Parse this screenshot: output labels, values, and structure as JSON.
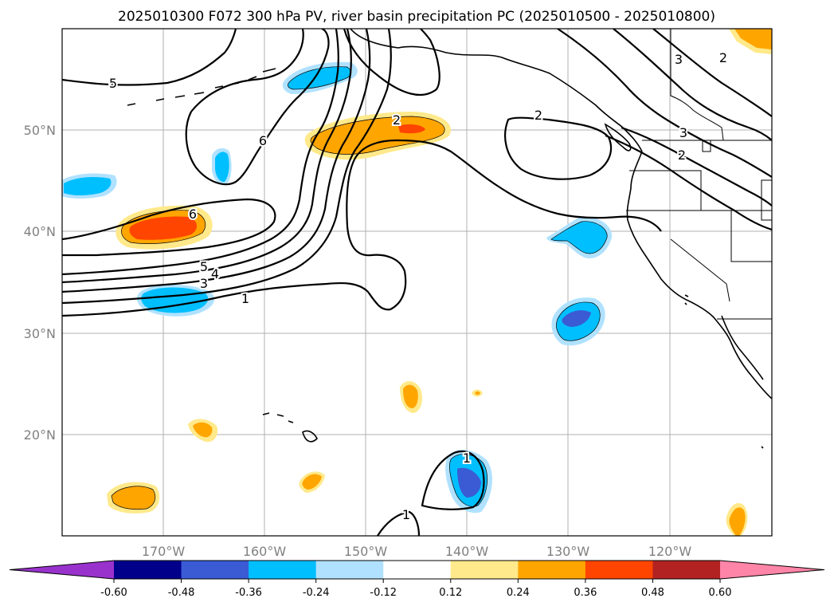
{
  "title": "2025010300 F072 300 hPa PV, river basin precipitation PC (2025010500 - 2025010800)",
  "lon_labels": [
    "170°W",
    "160°W",
    "150°W",
    "140°W",
    "130°W",
    "120°W"
  ],
  "lat_labels": [
    "50°N",
    "40°N",
    "30°N",
    "20°N"
  ],
  "colorbar": {
    "ticks": [
      "-0.60",
      "-0.48",
      "-0.36",
      "-0.24",
      "-0.12",
      "0.12",
      "0.24",
      "0.36",
      "0.48",
      "0.60"
    ],
    "colors": [
      "#9932cc",
      "#00008b",
      "#3a5bd4",
      "#00bfff",
      "#b0e2ff",
      "#ffffff",
      "#ffe98a",
      "#ffa500",
      "#ff4500",
      "#b22222",
      "#ff85a8"
    ]
  },
  "contour_labels": {
    "c1": "1",
    "c2": "2",
    "c3": "3",
    "c4": "4",
    "c5": "5",
    "c6": "6"
  }
}
